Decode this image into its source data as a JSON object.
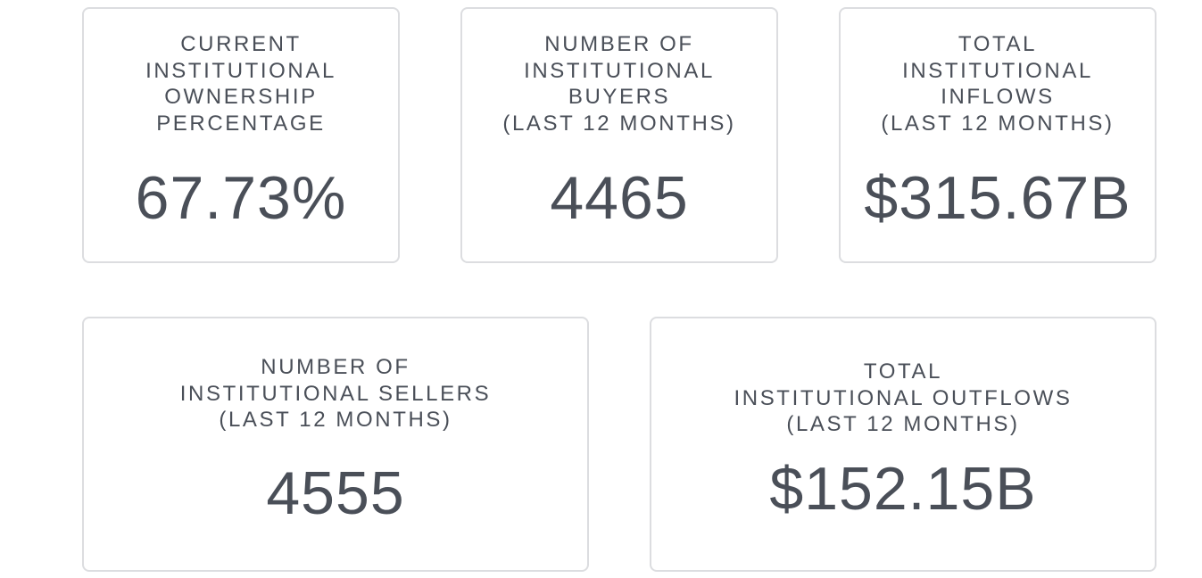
{
  "cards": [
    {
      "label_lines": [
        "CURRENT",
        "INSTITUTIONAL",
        "OWNERSHIP",
        "PERCENTAGE"
      ],
      "value": "67.73%"
    },
    {
      "label_lines": [
        "NUMBER OF",
        "INSTITUTIONAL",
        "BUYERS",
        "(LAST 12 MONTHS)"
      ],
      "value": "4465"
    },
    {
      "label_lines": [
        "TOTAL",
        "INSTITUTIONAL",
        "INFLOWS",
        "(LAST 12 MONTHS)"
      ],
      "value": "$315.67B"
    },
    {
      "label_lines": [
        "NUMBER OF",
        "INSTITUTIONAL SELLERS",
        "(LAST 12 MONTHS)"
      ],
      "value": "4555"
    },
    {
      "label_lines": [
        "TOTAL",
        "INSTITUTIONAL OUTFLOWS",
        "(LAST 12 MONTHS)"
      ],
      "value": "$152.15B"
    }
  ]
}
